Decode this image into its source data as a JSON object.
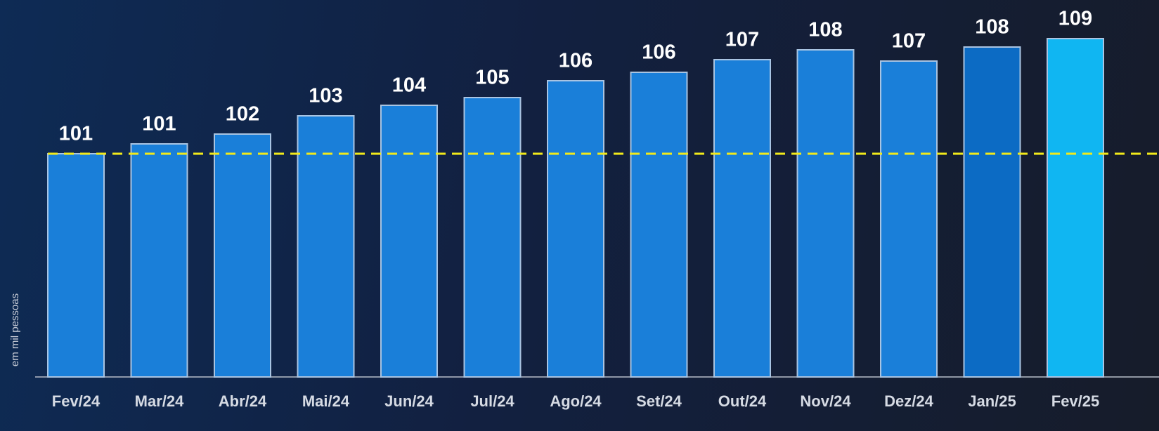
{
  "chart_data": {
    "type": "bar",
    "y_axis_label": "em mil pessoas",
    "categories": [
      "Fev/24",
      "Mar/24",
      "Abr/24",
      "Mai/24",
      "Jun/24",
      "Jul/24",
      "Ago/24",
      "Set/24",
      "Out/24",
      "Nov/24",
      "Dez/24",
      "Jan/25",
      "Fev/25"
    ],
    "values": [
      100.6,
      101.3,
      102.0,
      103.3,
      104.05,
      104.6,
      105.8,
      106.4,
      107.3,
      108.0,
      107.2,
      108.2,
      108.8
    ],
    "value_labels": [
      "101",
      "101",
      "102",
      "103",
      "104",
      "105",
      "106",
      "106",
      "107",
      "108",
      "107",
      "108",
      "109"
    ],
    "colors": [
      "#1a7fd9",
      "#1a7fd9",
      "#1a7fd9",
      "#1a7fd9",
      "#1a7fd9",
      "#1a7fd9",
      "#1a7fd9",
      "#1a7fd9",
      "#1a7fd9",
      "#1a7fd9",
      "#1a7fd9",
      "#0c6bc4",
      "#10b6f2"
    ],
    "ylim": [
      84.7,
      111.5
    ],
    "reference_line_color": "#f2ea1a"
  }
}
